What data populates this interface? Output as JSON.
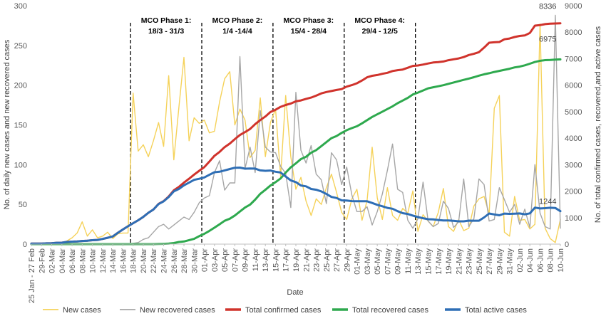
{
  "chart_data": {
    "type": "line",
    "xlabel": "Date",
    "ylabel_left": "No. of daily new cases and new recovered cases",
    "ylabel_right": "No. of total confirmed cases, recovered,and active cases",
    "ylim_left": [
      0,
      300
    ],
    "ylim_right": [
      0,
      9000
    ],
    "left_ticks": [
      "0",
      "50",
      "100",
      "150",
      "200",
      "250",
      "300"
    ],
    "right_ticks": [
      "0",
      "1000",
      "2000",
      "3000",
      "4000",
      "5000",
      "6000",
      "7000",
      "8000",
      "9000"
    ],
    "x_tick_labels": [
      "25 Jan - 27 Feb",
      "29-Feb",
      "02-Mar",
      "04-Mar",
      "06-Mar",
      "08-Mar",
      "10-Mar",
      "12-Mar",
      "14-Mar",
      "16-Mar",
      "18-Mar",
      "20-Mar",
      "22-Mar",
      "24-Mar",
      "26-Mar",
      "28-Mar",
      "30-Mar",
      "01-Apr",
      "03-Apr",
      "05-Apr",
      "07-Apr",
      "09-Apr",
      "11-Apr",
      "13-Apr",
      "15-Apr",
      "17-Apr",
      "19-Apr",
      "21-Apr",
      "23-Apr",
      "25-Apr",
      "27-Apr",
      "29-Apr",
      "01-May",
      "03-May",
      "05-May",
      "07-May",
      "09-May",
      "11-May",
      "13-May",
      "15-May",
      "17-May",
      "19-May",
      "21-May",
      "23-May",
      "25-May",
      "27-May",
      "29-May",
      "31-May",
      "02-Jun",
      "04-Jun",
      "06-Jun",
      "08-Jun",
      "10-Jun"
    ],
    "phases": [
      {
        "line1": "MCO Phase 1:",
        "line2": "18/3 - 31/3",
        "start_index": 21,
        "end_index": 34
      },
      {
        "line1": "MCO Phase 2:",
        "line2": "1/4 -14/4",
        "start_index": 35,
        "end_index": 48
      },
      {
        "line1": "MCO Phase 3:",
        "line2": "15/4 - 28/4",
        "start_index": 49,
        "end_index": 62
      },
      {
        "line1": "MCO Phase 4:",
        "line2": "29/4 - 12/5",
        "start_index": 63,
        "end_index": 76
      }
    ],
    "annotations": [
      {
        "text": "8336",
        "index": 104,
        "value": 8336,
        "axis": "right"
      },
      {
        "text": "6975",
        "index": 104,
        "value": 6975,
        "axis": "right"
      },
      {
        "text": "1244",
        "index": 104,
        "value": 1244,
        "axis": "right"
      }
    ],
    "series": [
      {
        "name": "New cases",
        "axis": "left",
        "color": "#F5D25A",
        "values": [
          0,
          0,
          0,
          0,
          2,
          0,
          1,
          4,
          8,
          14,
          28,
          10,
          18,
          8,
          10,
          15,
          7,
          13,
          14,
          14,
          190,
          117,
          125,
          110,
          130,
          153,
          123,
          212,
          106,
          172,
          235,
          130,
          159,
          152,
          156,
          140,
          142,
          179,
          208,
          217,
          150,
          170,
          156,
          109,
          118,
          184,
          110,
          153,
          170,
          85,
          187,
          110,
          69,
          84,
          54,
          36,
          57,
          50,
          71,
          88,
          65,
          40,
          31,
          57,
          69,
          30,
          55,
          122,
          58,
          31,
          71,
          36,
          30,
          45,
          39,
          67,
          16,
          37,
          29,
          22,
          40,
          70,
          22,
          16,
          31,
          17,
          20,
          48,
          57,
          60,
          38,
          171,
          187,
          15,
          10,
          60,
          30,
          31,
          19,
          25,
          277,
          20,
          7,
          2,
          31
        ]
      },
      {
        "name": "New recovered cases",
        "axis": "left",
        "color": "#A6A6A6",
        "values": [
          0,
          0,
          0,
          0,
          0,
          0,
          0,
          0,
          0,
          0,
          0,
          0,
          0,
          0,
          0,
          0,
          0,
          0,
          0,
          0,
          1,
          2,
          6,
          8,
          15,
          22,
          25,
          19,
          24,
          29,
          34,
          31,
          40,
          52,
          58,
          61,
          90,
          105,
          68,
          77,
          77,
          236,
          95,
          122,
          90,
          168,
          122,
          116,
          115,
          98,
          89,
          46,
          191,
          118,
          102,
          124,
          88,
          81,
          51,
          115,
          106,
          75,
          97,
          62,
          41,
          41,
          47,
          24,
          41,
          63,
          93,
          126,
          69,
          65,
          30,
          20,
          32,
          78,
          29,
          22,
          26,
          54,
          45,
          21,
          28,
          82,
          22,
          32,
          82,
          75,
          29,
          31,
          71,
          56,
          40,
          50,
          25,
          44,
          21,
          100,
          39,
          22,
          19,
          288,
          20
        ]
      },
      {
        "name": "Total confirmed cases",
        "axis": "right",
        "color": "#D0332C",
        "values": [
          22,
          22,
          22,
          29,
          36,
          50,
          55,
          83,
          93,
          99,
          117,
          129,
          149,
          158,
          197,
          238,
          290,
          428,
          553,
          673,
          790,
          900,
          1030,
          1183,
          1306,
          1518,
          1624,
          1796,
          2031,
          2161,
          2320,
          2470,
          2626,
          2766,
          2908,
          3116,
          3333,
          3483,
          3662,
          3793,
          3963,
          4119,
          4228,
          4346,
          4530,
          4683,
          4817,
          4987,
          5072,
          5182,
          5251,
          5305,
          5389,
          5425,
          5482,
          5532,
          5603,
          5691,
          5742,
          5780,
          5820,
          5851,
          5945,
          6002,
          6071,
          6176,
          6298,
          6353,
          6383,
          6428,
          6467,
          6535,
          6565,
          6589,
          6656,
          6726,
          6742,
          6779,
          6819,
          6855,
          6872,
          6894,
          6941,
          6978,
          7009,
          7059,
          7137,
          7185,
          7245,
          7417,
          7604,
          7619,
          7629,
          7732,
          7762,
          7819,
          7857,
          7877,
          7970,
          8247,
          8266,
          8303,
          8322,
          8329,
          8336
        ]
      },
      {
        "name": "Total recovered cases",
        "axis": "right",
        "color": "#2EA94E",
        "values": [
          0,
          0,
          0,
          0,
          0,
          0,
          0,
          0,
          0,
          0,
          0,
          0,
          0,
          0,
          0,
          0,
          0,
          0,
          0,
          0,
          0,
          0,
          0,
          0,
          0,
          5,
          10,
          20,
          40,
          80,
          100,
          150,
          200,
          300,
          390,
          500,
          620,
          750,
          880,
          960,
          1080,
          1230,
          1380,
          1490,
          1680,
          1900,
          2050,
          2210,
          2340,
          2480,
          2700,
          2900,
          3050,
          3210,
          3300,
          3450,
          3550,
          3700,
          3850,
          4000,
          4080,
          4200,
          4300,
          4380,
          4450,
          4560,
          4680,
          4800,
          4900,
          5000,
          5100,
          5200,
          5320,
          5420,
          5520,
          5650,
          5720,
          5800,
          5880,
          5920,
          5960,
          6000,
          6050,
          6100,
          6150,
          6200,
          6250,
          6300,
          6360,
          6410,
          6450,
          6500,
          6540,
          6580,
          6620,
          6670,
          6700,
          6750,
          6810,
          6875,
          6920,
          6946,
          6950,
          6965,
          6975
        ]
      },
      {
        "name": "Total active cases",
        "axis": "right",
        "color": "#2E6EB5",
        "values": [
          22,
          22,
          22,
          29,
          36,
          50,
          55,
          83,
          93,
          99,
          117,
          129,
          149,
          158,
          197,
          238,
          290,
          428,
          553,
          673,
          790,
          900,
          1030,
          1183,
          1306,
          1513,
          1614,
          1776,
          1991,
          2081,
          2220,
          2320,
          2426,
          2466,
          2518,
          2616,
          2713,
          2733,
          2782,
          2833,
          2883,
          2889,
          2848,
          2856,
          2850,
          2783,
          2767,
          2777,
          2732,
          2702,
          2551,
          2405,
          2339,
          2215,
          2182,
          2082,
          2053,
          1991,
          1892,
          1780,
          1740,
          1651,
          1645,
          1622,
          1621,
          1616,
          1618,
          1553,
          1483,
          1428,
          1367,
          1335,
          1245,
          1169,
          1136,
          1076,
          1022,
          979,
          939,
          935,
          912,
          894,
          891,
          878,
          859,
          859,
          887,
          885,
          885,
          1007,
          1154,
          1119,
          1089,
          1152,
          1142,
          1149,
          1157,
          1127,
          1160,
          1377,
          1346,
          1357,
          1372,
          1364,
          1244
        ]
      }
    ]
  },
  "legend": [
    {
      "label": "New cases",
      "color": "#F5D25A"
    },
    {
      "label": "New recovered cases",
      "color": "#A6A6A6"
    },
    {
      "label": "Total confirmed cases",
      "color": "#D0332C"
    },
    {
      "label": "Total recovered cases",
      "color": "#2EA94E"
    },
    {
      "label": "Total active cases",
      "color": "#2E6EB5"
    }
  ]
}
